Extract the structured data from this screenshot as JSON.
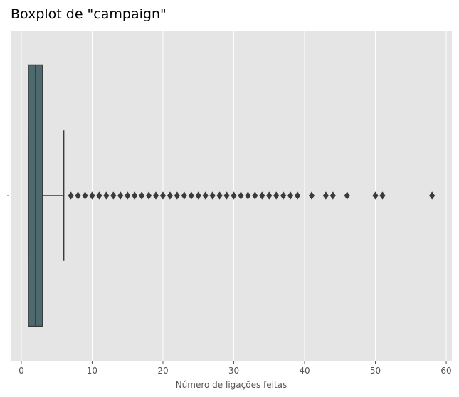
{
  "chart_data": {
    "type": "boxplot",
    "title": "Boxplot de \"campaign\"",
    "xlabel": "Número de ligações feitas",
    "ylabel": "",
    "xlim": [
      -1.5,
      60.8
    ],
    "xticks": [
      0,
      10,
      20,
      30,
      40,
      50,
      60
    ],
    "grid": true,
    "orientation": "horizontal",
    "box": {
      "min": 1,
      "q1": 1,
      "median": 2,
      "q3": 3,
      "whisker_high": 6
    },
    "outliers": [
      7,
      8,
      9,
      10,
      11,
      12,
      13,
      14,
      15,
      16,
      17,
      18,
      19,
      20,
      21,
      22,
      23,
      24,
      25,
      26,
      27,
      28,
      29,
      30,
      31,
      32,
      33,
      34,
      35,
      36,
      37,
      38,
      39,
      41,
      43,
      44,
      46,
      50,
      51,
      58
    ],
    "colors": {
      "plot_background": "#e5e5e5",
      "grid": "#ffffff",
      "box_fill": "#4e6a6e",
      "line": "#3a3a3a"
    }
  }
}
